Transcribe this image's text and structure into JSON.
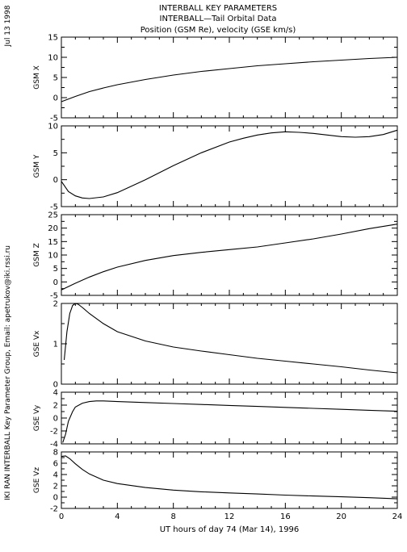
{
  "header": {
    "title_line1": "INTERBALL KEY PARAMETERS",
    "title_line2": "INTERBALL—Tail Orbital Data",
    "title_line3": "Position (GSM Re), velocity (GSE km/s)"
  },
  "side": {
    "date": "Jul 13 1998",
    "credit": "IKI RAN INTERBALL Key Parameter Group, Email: apetrukov@iki.rssi.ru"
  },
  "chart_data": {
    "type": "line",
    "x_axis": {
      "label": "UT hours of day  74 (Mar 14), 1996",
      "range": [
        0,
        24
      ],
      "ticks": [
        0,
        4,
        8,
        12,
        16,
        20,
        24
      ]
    },
    "panels": [
      {
        "ylabel": "GSM X",
        "ylim": [
          -5,
          15
        ],
        "yticks": [
          -5,
          0,
          5,
          10,
          15
        ],
        "series": [
          {
            "x": [
              0,
              1,
              2,
              3,
              4,
              6,
              8,
              10,
              12,
              14,
              16,
              18,
              20,
              22,
              24
            ],
            "y": [
              -1.0,
              0.3,
              1.5,
              2.4,
              3.2,
              4.5,
              5.6,
              6.5,
              7.2,
              7.9,
              8.4,
              8.9,
              9.3,
              9.7,
              10.0
            ]
          }
        ]
      },
      {
        "ylabel": "GSM Y",
        "ylim": [
          -5,
          10
        ],
        "yticks": [
          -5,
          0,
          5,
          10
        ],
        "series": [
          {
            "x": [
              0,
              0.5,
              1,
              1.5,
              2,
              3,
              4,
              6,
              8,
              10,
              12,
              13,
              14,
              15,
              16,
              17,
              18,
              19,
              20,
              21,
              22,
              23,
              24
            ],
            "y": [
              -0.3,
              -2.2,
              -3.0,
              -3.4,
              -3.5,
              -3.2,
              -2.4,
              0.0,
              2.6,
              5.0,
              7.0,
              7.7,
              8.3,
              8.7,
              8.9,
              8.8,
              8.6,
              8.3,
              8.0,
              7.9,
              8.0,
              8.4,
              9.2
            ]
          }
        ]
      },
      {
        "ylabel": "GSM Z",
        "ylim": [
          -5,
          25
        ],
        "yticks": [
          -5,
          0,
          5,
          10,
          15,
          20,
          25
        ],
        "series": [
          {
            "x": [
              0,
              1,
              2,
              3,
              4,
              6,
              8,
              10,
              12,
              14,
              16,
              18,
              20,
              22,
              24
            ],
            "y": [
              -3.0,
              -0.5,
              1.8,
              3.8,
              5.5,
              8.0,
              9.8,
              11.0,
              12.0,
              13.0,
              14.5,
              16.0,
              17.8,
              19.8,
              21.5
            ]
          }
        ]
      },
      {
        "ylabel": "GSE Vx",
        "ylim": [
          0,
          2
        ],
        "yticks": [
          0,
          1,
          2
        ],
        "series": [
          {
            "x": [
              0.2,
              0.4,
              0.6,
              0.8,
              1.0,
              1.2,
              1.5,
              2,
              3,
              4,
              6,
              8,
              10,
              12,
              14,
              16,
              18,
              20,
              22,
              24
            ],
            "y": [
              0.6,
              1.3,
              1.75,
              1.95,
              2.0,
              1.98,
              1.9,
              1.75,
              1.5,
              1.3,
              1.07,
              0.92,
              0.82,
              0.73,
              0.64,
              0.57,
              0.5,
              0.43,
              0.35,
              0.28
            ]
          }
        ]
      },
      {
        "ylabel": "GSE Vy",
        "ylim": [
          -4,
          4
        ],
        "yticks": [
          -4,
          -2,
          0,
          2,
          4
        ],
        "series": [
          {
            "x": [
              0.1,
              0.3,
              0.5,
              0.8,
              1.0,
              1.5,
              2,
              2.5,
              3,
              4,
              6,
              8,
              10,
              12,
              14,
              16,
              18,
              20,
              22,
              24
            ],
            "y": [
              -3.8,
              -2.5,
              -0.5,
              1.0,
              1.7,
              2.3,
              2.55,
              2.65,
              2.65,
              2.55,
              2.4,
              2.25,
              2.1,
              1.95,
              1.8,
              1.65,
              1.5,
              1.35,
              1.2,
              1.05
            ]
          }
        ]
      },
      {
        "ylabel": "GSE Vz",
        "ylim": [
          -2,
          8
        ],
        "yticks": [
          -2,
          0,
          2,
          4,
          6,
          8
        ],
        "series": [
          {
            "x": [
              0,
              0.3,
              0.6,
              1,
              1.5,
              2,
              3,
              4,
              6,
              8,
              10,
              12,
              14,
              16,
              18,
              20,
              22,
              24
            ],
            "y": [
              7.2,
              7.3,
              6.8,
              5.9,
              4.9,
              4.1,
              3.0,
              2.4,
              1.7,
              1.25,
              0.95,
              0.75,
              0.55,
              0.35,
              0.2,
              0.05,
              -0.1,
              -0.3
            ]
          }
        ]
      }
    ]
  }
}
